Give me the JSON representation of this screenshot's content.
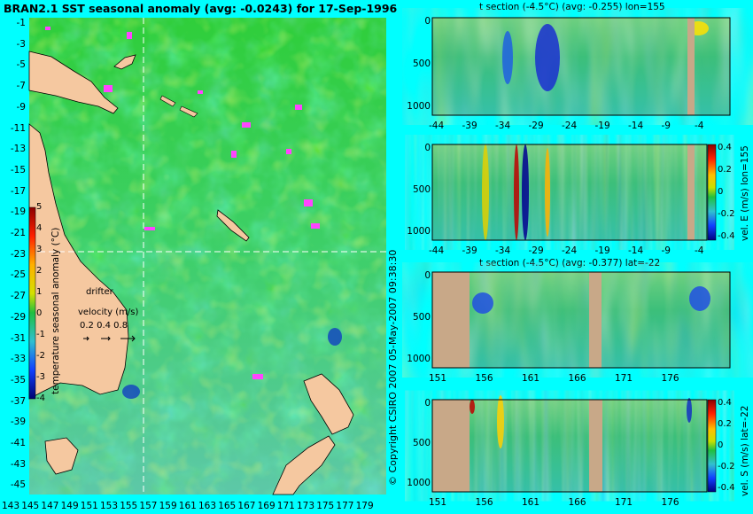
{
  "main_title": "BRAN2.1 SST seasonal anomaly (avg: -0.0243) for 17-Sep-1996",
  "copyright": "© Copyright CSIRO 2007  05-May-2007 09:38:30",
  "map": {
    "lat_ticks": [
      "-1",
      "-3",
      "-5",
      "-7",
      "-9",
      "-11",
      "-13",
      "-15",
      "-17",
      "-19",
      "-21",
      "-23",
      "-25",
      "-27",
      "-29",
      "-31",
      "-33",
      "-35",
      "-37",
      "-39",
      "-41",
      "-43",
      "-45"
    ],
    "lon_ticks": [
      "143",
      "145",
      "147",
      "149",
      "151",
      "153",
      "155",
      "157",
      "159",
      "161",
      "163",
      "165",
      "167",
      "169",
      "171",
      "173",
      "175",
      "177",
      "179"
    ],
    "colorbar_label": "temperature seasonal anomaly (°C)",
    "colorbar_ticks": [
      "5",
      "4",
      "3",
      "2",
      "1",
      "0",
      "-1",
      "-2",
      "-3",
      "-4"
    ],
    "legend_drifter": "drifter",
    "legend_velocity": "velocity (m/s)",
    "legend_velocity_values": "0.2 0.4 0.8"
  },
  "panels": [
    {
      "title": "t section (-4.5°C) (avg: -0.255) lon=155",
      "x_ticks": [
        "-44",
        "-39",
        "-34",
        "-29",
        "-24",
        "-19",
        "-14",
        "-9",
        "-4"
      ],
      "y_ticks": [
        "0",
        "500",
        "1000"
      ],
      "colorbar_label": ""
    },
    {
      "title": "",
      "x_ticks": [
        "-44",
        "-39",
        "-34",
        "-29",
        "-24",
        "-19",
        "-14",
        "-9",
        "-4"
      ],
      "y_ticks": [
        "0",
        "500",
        "1000"
      ],
      "colorbar_label": "vel. E (m/s) lon=155"
    },
    {
      "title": "t section (-4.5°C) (avg: -0.377) lat=-22",
      "x_ticks": [
        "151",
        "156",
        "161",
        "166",
        "171",
        "176"
      ],
      "y_ticks": [
        "0",
        "500",
        "1000"
      ],
      "colorbar_label": ""
    },
    {
      "title": "",
      "x_ticks": [
        "151",
        "156",
        "161",
        "166",
        "171",
        "176"
      ],
      "y_ticks": [
        "0",
        "500",
        "1000"
      ],
      "colorbar_label": "vel. S (m/s) lat=-22"
    }
  ],
  "vel_colorbar_ticks": [
    "0.4",
    "0.2",
    "0",
    "-0.2",
    "-0.4"
  ],
  "colors": {
    "background": "#00ffff",
    "land": "#f5c8a0",
    "section_land": "#c8a888",
    "anomaly": "#ff44ff"
  },
  "chart_data": [
    {
      "type": "heatmap",
      "title": "BRAN2.1 SST seasonal anomaly (avg: -0.0243) for 17-Sep-1996",
      "xlabel": "",
      "ylabel": "",
      "xlim": [
        143,
        180
      ],
      "ylim": [
        -45,
        0
      ],
      "colorbar_range": [
        -4,
        5
      ],
      "grid": false
    },
    {
      "type": "heatmap",
      "title": "t section (-4.5°C) (avg: -0.255) lon=155",
      "xlim": [
        -45,
        -1
      ],
      "ylim": [
        1050,
        0
      ]
    },
    {
      "type": "heatmap",
      "title": "",
      "xlim": [
        -45,
        -1
      ],
      "ylim": [
        1050,
        0
      ],
      "colorbar_range": [
        -0.4,
        0.4
      ]
    },
    {
      "type": "heatmap",
      "title": "t section (-4.5°C) (avg: -0.377) lat=-22",
      "xlim": [
        150,
        180
      ],
      "ylim": [
        1050,
        0
      ]
    },
    {
      "type": "heatmap",
      "title": "",
      "xlim": [
        150,
        180
      ],
      "ylim": [
        1050,
        0
      ],
      "colorbar_range": [
        -0.4,
        0.4
      ]
    }
  ]
}
